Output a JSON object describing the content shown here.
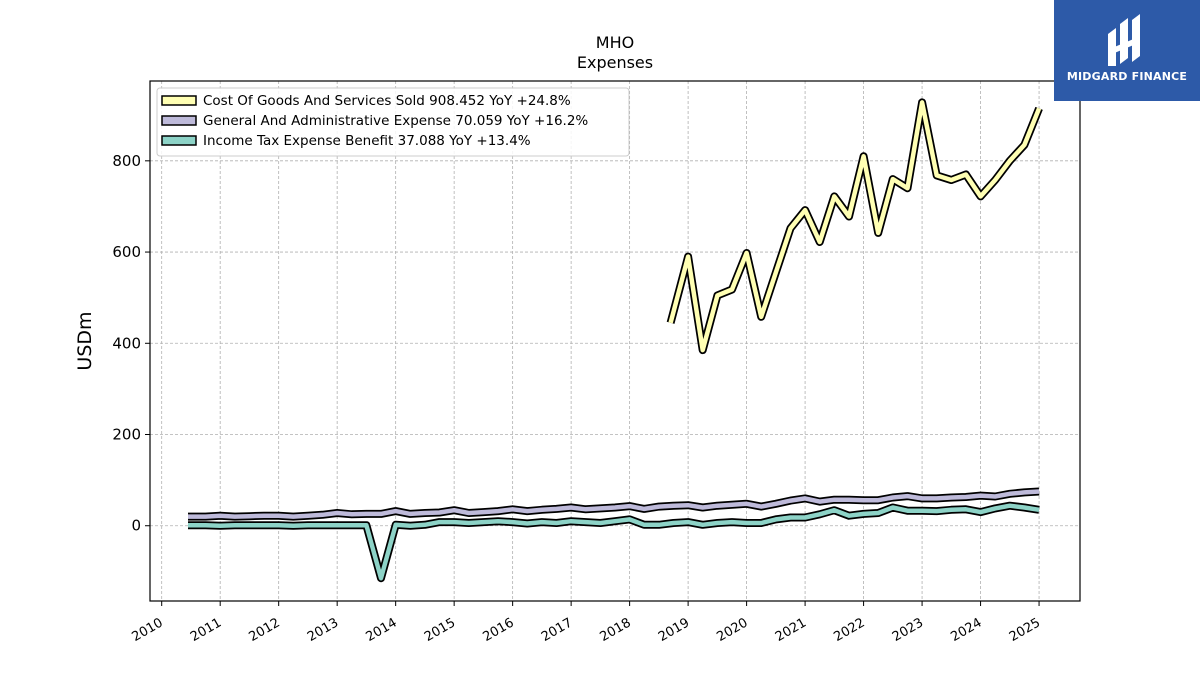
{
  "chart_data": {
    "type": "line",
    "title": "MHO",
    "subtitle": "Expenses",
    "ylabel": "USDm",
    "xlabel": "",
    "ylim": [
      -165,
      975
    ],
    "xlim": [
      2009.8,
      2025.7
    ],
    "yticks": [
      0,
      200,
      400,
      600,
      800
    ],
    "xticks": [
      "2010",
      "2011",
      "2012",
      "2013",
      "2014",
      "2015",
      "2016",
      "2017",
      "2018",
      "2019",
      "2020",
      "2021",
      "2022",
      "2023",
      "2024",
      "2025"
    ],
    "grid": true,
    "legend_position": "top-left",
    "series": [
      {
        "name": "Cost Of Goods And Services Sold",
        "legend": "Cost Of Goods And Services Sold  908.452 YoY +24.8%",
        "color": "#ffffb3",
        "points": [
          [
            2018.7,
            445
          ],
          [
            2019.0,
            590
          ],
          [
            2019.25,
            385
          ],
          [
            2019.5,
            505
          ],
          [
            2019.75,
            518
          ],
          [
            2020.0,
            598
          ],
          [
            2020.25,
            458
          ],
          [
            2020.5,
            555
          ],
          [
            2020.75,
            652
          ],
          [
            2021.0,
            692
          ],
          [
            2021.25,
            622
          ],
          [
            2021.5,
            722
          ],
          [
            2021.75,
            678
          ],
          [
            2022.0,
            810
          ],
          [
            2022.25,
            642
          ],
          [
            2022.5,
            760
          ],
          [
            2022.75,
            740
          ],
          [
            2023.0,
            928
          ],
          [
            2023.25,
            768
          ],
          [
            2023.5,
            758
          ],
          [
            2023.75,
            770
          ],
          [
            2024.0,
            722
          ],
          [
            2024.25,
            758
          ],
          [
            2024.5,
            800
          ],
          [
            2024.75,
            835
          ],
          [
            2025.0,
            915
          ]
        ]
      },
      {
        "name": "General And Administrative Expense",
        "legend": "General And Administrative Expense  70.059 YoY +16.2%",
        "color": "#bebada",
        "points": [
          [
            2010.45,
            20
          ],
          [
            2010.75,
            20
          ],
          [
            2011.0,
            22
          ],
          [
            2011.25,
            20
          ],
          [
            2011.5,
            21
          ],
          [
            2011.75,
            22
          ],
          [
            2012.0,
            22
          ],
          [
            2012.25,
            20
          ],
          [
            2012.5,
            22
          ],
          [
            2012.75,
            24
          ],
          [
            2013.0,
            28
          ],
          [
            2013.25,
            25
          ],
          [
            2013.5,
            26
          ],
          [
            2013.75,
            26
          ],
          [
            2014.0,
            32
          ],
          [
            2014.25,
            26
          ],
          [
            2014.5,
            28
          ],
          [
            2014.75,
            29
          ],
          [
            2015.0,
            34
          ],
          [
            2015.25,
            28
          ],
          [
            2015.5,
            30
          ],
          [
            2015.75,
            32
          ],
          [
            2016.0,
            36
          ],
          [
            2016.25,
            32
          ],
          [
            2016.5,
            35
          ],
          [
            2016.75,
            37
          ],
          [
            2017.0,
            40
          ],
          [
            2017.25,
            36
          ],
          [
            2017.5,
            38
          ],
          [
            2017.75,
            40
          ],
          [
            2018.0,
            43
          ],
          [
            2018.25,
            37
          ],
          [
            2018.5,
            42
          ],
          [
            2018.75,
            44
          ],
          [
            2019.0,
            45
          ],
          [
            2019.25,
            40
          ],
          [
            2019.5,
            44
          ],
          [
            2019.75,
            46
          ],
          [
            2020.0,
            48
          ],
          [
            2020.25,
            42
          ],
          [
            2020.5,
            48
          ],
          [
            2020.75,
            55
          ],
          [
            2021.0,
            60
          ],
          [
            2021.25,
            53
          ],
          [
            2021.5,
            57
          ],
          [
            2021.75,
            57
          ],
          [
            2022.0,
            56
          ],
          [
            2022.25,
            56
          ],
          [
            2022.5,
            62
          ],
          [
            2022.75,
            65
          ],
          [
            2023.0,
            60
          ],
          [
            2023.25,
            60
          ],
          [
            2023.5,
            62
          ],
          [
            2023.75,
            63
          ],
          [
            2024.0,
            66
          ],
          [
            2024.25,
            64
          ],
          [
            2024.5,
            70
          ],
          [
            2024.75,
            73
          ],
          [
            2025.0,
            75
          ]
        ]
      },
      {
        "name": "Income Tax Expense Benefit",
        "legend": "Income Tax Expense Benefit  37.088 YoY +13.4%",
        "color": "#8dd3c7",
        "points": [
          [
            2010.45,
            1
          ],
          [
            2010.75,
            1
          ],
          [
            2011.0,
            0
          ],
          [
            2011.25,
            1
          ],
          [
            2011.5,
            1
          ],
          [
            2011.75,
            1
          ],
          [
            2012.0,
            1
          ],
          [
            2012.25,
            0
          ],
          [
            2012.5,
            1
          ],
          [
            2012.75,
            1
          ],
          [
            2013.0,
            1
          ],
          [
            2013.25,
            1
          ],
          [
            2013.5,
            1
          ],
          [
            2013.75,
            -115
          ],
          [
            2014.0,
            2
          ],
          [
            2014.25,
            0
          ],
          [
            2014.5,
            2
          ],
          [
            2014.75,
            8
          ],
          [
            2015.0,
            8
          ],
          [
            2015.25,
            6
          ],
          [
            2015.5,
            8
          ],
          [
            2015.75,
            10
          ],
          [
            2016.0,
            8
          ],
          [
            2016.25,
            5
          ],
          [
            2016.5,
            8
          ],
          [
            2016.75,
            6
          ],
          [
            2017.0,
            10
          ],
          [
            2017.25,
            8
          ],
          [
            2017.5,
            6
          ],
          [
            2017.75,
            10
          ],
          [
            2018.0,
            14
          ],
          [
            2018.25,
            2
          ],
          [
            2018.5,
            2
          ],
          [
            2018.75,
            6
          ],
          [
            2019.0,
            8
          ],
          [
            2019.25,
            2
          ],
          [
            2019.5,
            6
          ],
          [
            2019.75,
            8
          ],
          [
            2020.0,
            6
          ],
          [
            2020.25,
            6
          ],
          [
            2020.5,
            14
          ],
          [
            2020.75,
            18
          ],
          [
            2021.0,
            18
          ],
          [
            2021.25,
            25
          ],
          [
            2021.5,
            34
          ],
          [
            2021.75,
            22
          ],
          [
            2022.0,
            26
          ],
          [
            2022.25,
            28
          ],
          [
            2022.5,
            40
          ],
          [
            2022.75,
            33
          ],
          [
            2023.0,
            33
          ],
          [
            2023.25,
            32
          ],
          [
            2023.5,
            35
          ],
          [
            2023.75,
            36
          ],
          [
            2024.0,
            30
          ],
          [
            2024.25,
            38
          ],
          [
            2024.5,
            44
          ],
          [
            2024.75,
            40
          ],
          [
            2025.0,
            35
          ]
        ]
      }
    ]
  },
  "logo": {
    "text": "MIDGARD FINANCE",
    "background": "#2d5aa8"
  }
}
